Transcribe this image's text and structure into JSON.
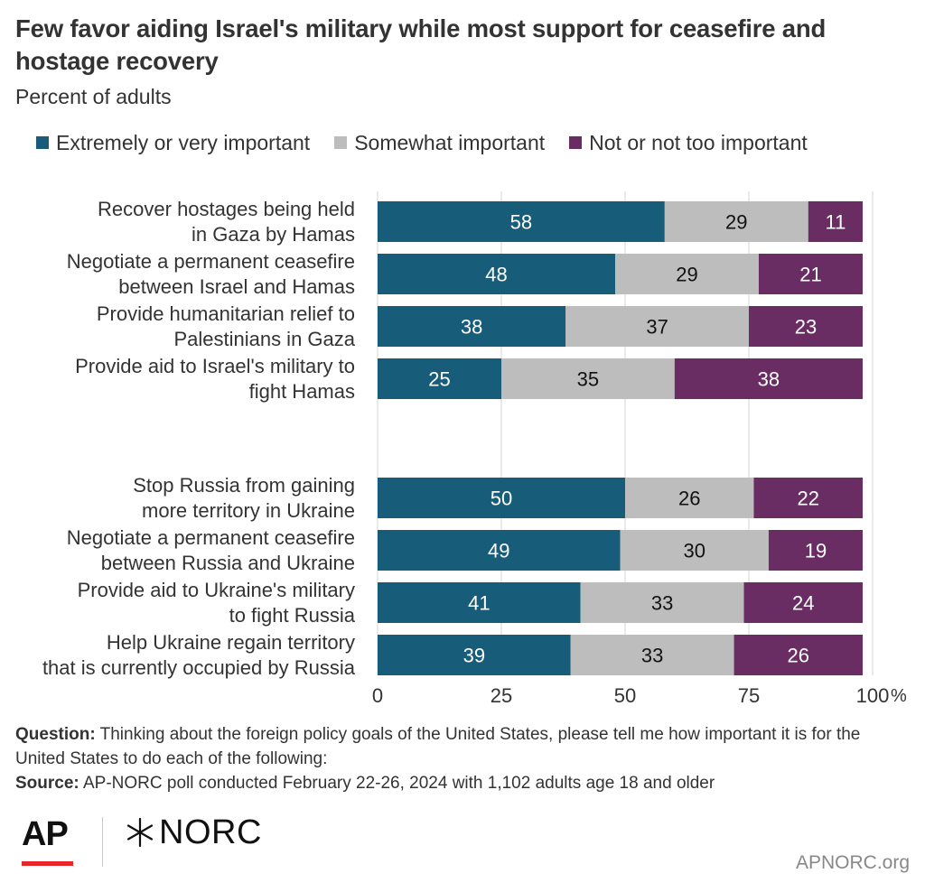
{
  "header": {
    "title": "Few favor aiding Israel's military while most support for ceasefire and hostage recovery",
    "subtitle": "Percent of adults"
  },
  "colors": {
    "extremely": "#175d7a",
    "somewhat": "#bdbdbd",
    "not": "#6a2d63",
    "grid": "#d6d6d6",
    "text": "#333333"
  },
  "legend": [
    {
      "label": "Extremely or very important",
      "color": "#175d7a"
    },
    {
      "label": "Somewhat important",
      "color": "#bdbdbd"
    },
    {
      "label": "Not or not too important",
      "color": "#6a2d63"
    }
  ],
  "chart_data": {
    "type": "bar",
    "orientation": "horizontal",
    "stacked": true,
    "categories": [
      "Recover hostages being held in Gaza by Hamas",
      "Negotiate a permanent ceasefire between Israel and Hamas",
      "Provide humanitarian relief to Palestinians in Gaza",
      "Provide aid to Israel's military to fight Hamas",
      "Stop Russia from gaining more territory in Ukraine",
      "Negotiate a permanent ceasefire between Russia and Ukraine",
      "Provide aid to Ukraine's military to fight Russia",
      "Help Ukraine regain territory that is currently occupied by Russia"
    ],
    "category_lines": [
      [
        "Recover hostages being held",
        "in Gaza by Hamas"
      ],
      [
        "Negotiate a permanent ceasefire",
        "between Israel and Hamas"
      ],
      [
        "Provide humanitarian relief to",
        "Palestinians in Gaza"
      ],
      [
        "Provide aid to Israel's military to",
        "fight Hamas"
      ],
      [
        "Stop Russia from gaining",
        "more territory in Ukraine"
      ],
      [
        "Negotiate a permanent ceasefire",
        "between Russia and Ukraine"
      ],
      [
        "Provide aid to Ukraine's military",
        "to fight Russia"
      ],
      [
        "Help Ukraine regain territory",
        "that is currently occupied by Russia"
      ]
    ],
    "groups": [
      [
        0,
        1,
        2,
        3
      ],
      [
        4,
        5,
        6,
        7
      ]
    ],
    "series": [
      {
        "name": "Extremely or very important",
        "values": [
          58,
          48,
          38,
          25,
          50,
          49,
          41,
          39
        ]
      },
      {
        "name": "Somewhat important",
        "values": [
          29,
          29,
          37,
          35,
          26,
          30,
          33,
          33
        ]
      },
      {
        "name": "Not or not too important",
        "values": [
          11,
          21,
          23,
          38,
          22,
          19,
          24,
          26
        ]
      }
    ],
    "xlim": [
      0,
      100
    ],
    "xticks": [
      "0",
      "25",
      "50",
      "75",
      "100"
    ],
    "x_unit": "%",
    "grid": true,
    "legend_position": "top"
  },
  "footer": {
    "question_label": "Question:",
    "question_text": "Thinking about the foreign policy goals of the United States, please tell me how important it is for the United States to do each of the following:",
    "source_label": "Source:",
    "source_text": "AP-NORC poll conducted February 22-26, 2024 with 1,102 adults age 18 and older"
  },
  "branding": {
    "ap_logo": "AP",
    "norc_logo": "NORC",
    "website": "APNORC.org"
  }
}
